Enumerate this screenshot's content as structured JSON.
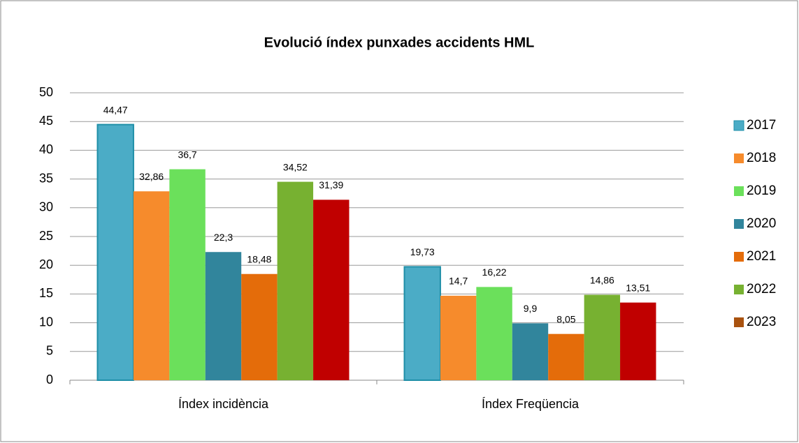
{
  "chart_data": {
    "type": "bar",
    "title": "Evolució índex punxades accidents HML",
    "categories": [
      "Índex incidència",
      "Índex Freqüencia"
    ],
    "series": [
      {
        "name": "2017",
        "color": "#4bacc6",
        "values": [
          44.47,
          19.73
        ],
        "value_labels": [
          "44,47",
          "19,73"
        ]
      },
      {
        "name": "2018",
        "color": "#f68b2c",
        "values": [
          32.86,
          14.7
        ],
        "value_labels": [
          "32,86",
          "14,7"
        ]
      },
      {
        "name": "2019",
        "color": "#6be05b",
        "values": [
          36.7,
          16.22
        ],
        "value_labels": [
          "36,7",
          "16,22"
        ]
      },
      {
        "name": "2020",
        "color": "#31859c",
        "values": [
          22.3,
          9.9
        ],
        "value_labels": [
          "22,3",
          "9,9"
        ]
      },
      {
        "name": "2021",
        "color": "#e46c0a",
        "values": [
          18.48,
          8.05
        ],
        "value_labels": [
          "18,48",
          "8,05"
        ]
      },
      {
        "name": "2022",
        "color": "#77b131",
        "values": [
          34.52,
          14.86
        ],
        "value_labels": [
          "34,52",
          "14,86"
        ]
      },
      {
        "name": "2023",
        "color": "#c00000",
        "legend_color": "#a9520f",
        "values": [
          31.39,
          13.51
        ],
        "value_labels": [
          "31,39",
          "13,51"
        ]
      }
    ],
    "ylim": [
      0,
      50
    ],
    "yticks": [
      0,
      5,
      10,
      15,
      20,
      25,
      30,
      35,
      40,
      45,
      50
    ],
    "grid": true,
    "legend": "right"
  }
}
